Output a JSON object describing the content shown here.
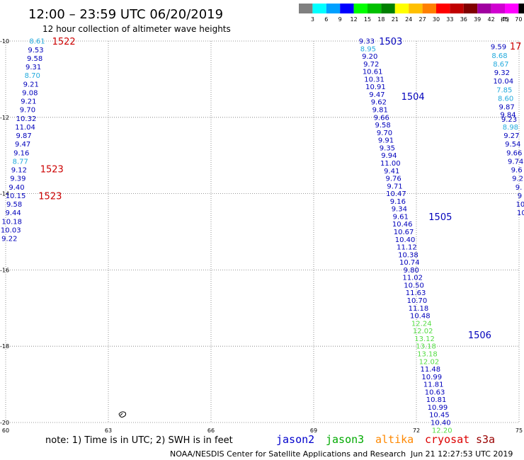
{
  "header": {
    "title": "12:00 – 23:59 UTC 06/20/2019",
    "subtitle": "12 hour collection of altimeter wave heights"
  },
  "legend": {
    "unit": "(ft)",
    "items": [
      {
        "label": "3",
        "color": "#808080"
      },
      {
        "label": "6",
        "color": "#00ffff"
      },
      {
        "label": "9",
        "color": "#00a0ff"
      },
      {
        "label": "12",
        "color": "#0000ff"
      },
      {
        "label": "15",
        "color": "#00ff00"
      },
      {
        "label": "18",
        "color": "#00c000"
      },
      {
        "label": "21",
        "color": "#008000"
      },
      {
        "label": "24",
        "color": "#ffff00"
      },
      {
        "label": "27",
        "color": "#ffc000"
      },
      {
        "label": "30",
        "color": "#ff8000"
      },
      {
        "label": "33",
        "color": "#ff0000"
      },
      {
        "label": "36",
        "color": "#c00000"
      },
      {
        "label": "39",
        "color": "#800000"
      },
      {
        "label": "42",
        "color": "#a000a0"
      },
      {
        "label": "45",
        "color": "#d000d0"
      },
      {
        "label": "70",
        "color": "#ff00ff"
      },
      {
        "label": "",
        "color": "#000000"
      }
    ]
  },
  "axes": {
    "lat_labels": [
      "-10",
      "-12",
      "-14",
      "-16",
      "-18",
      "-20"
    ],
    "lon_labels": [
      "60",
      "63",
      "66",
      "69",
      "72",
      "75"
    ]
  },
  "colors": {
    "cyan": "#22aadd",
    "blue": "#0000bb",
    "green": "#55dd44",
    "red": "#cc0000"
  },
  "tracks": {
    "t1522": [
      {
        "v": "8.61",
        "lon": 60.92,
        "lat": -10.0,
        "c": "cyan"
      },
      {
        "v": "9.53",
        "lon": 60.88,
        "lat": -10.23,
        "c": "blue"
      },
      {
        "v": "9.58",
        "lon": 60.85,
        "lat": -10.45,
        "c": "blue"
      },
      {
        "v": "9.31",
        "lon": 60.81,
        "lat": -10.68,
        "c": "blue"
      },
      {
        "v": "8.70",
        "lon": 60.78,
        "lat": -10.9,
        "c": "cyan"
      },
      {
        "v": "9.21",
        "lon": 60.74,
        "lat": -11.13,
        "c": "blue"
      },
      {
        "v": "9.08",
        "lon": 60.71,
        "lat": -11.35,
        "c": "blue"
      },
      {
        "v": "9.21",
        "lon": 60.67,
        "lat": -11.58,
        "c": "blue"
      },
      {
        "v": "9.70",
        "lon": 60.64,
        "lat": -11.8,
        "c": "blue"
      },
      {
        "v": "10.32",
        "lon": 60.6,
        "lat": -12.03,
        "c": "blue"
      },
      {
        "v": "11.04",
        "lon": 60.57,
        "lat": -12.25,
        "c": "blue"
      },
      {
        "v": "9.87",
        "lon": 60.53,
        "lat": -12.48,
        "c": "blue"
      },
      {
        "v": "9.47",
        "lon": 60.5,
        "lat": -12.7,
        "c": "blue"
      },
      {
        "v": "9.16",
        "lon": 60.46,
        "lat": -12.93,
        "c": "blue"
      },
      {
        "v": "8.77",
        "lon": 60.43,
        "lat": -13.15,
        "c": "cyan"
      },
      {
        "v": "9.12",
        "lon": 60.39,
        "lat": -13.38,
        "c": "blue"
      },
      {
        "v": "9.39",
        "lon": 60.36,
        "lat": -13.6,
        "c": "blue"
      },
      {
        "v": "9.40",
        "lon": 60.32,
        "lat": -13.83,
        "c": "blue"
      },
      {
        "v": "10.15",
        "lon": 60.29,
        "lat": -14.05,
        "c": "blue"
      },
      {
        "v": "9.58",
        "lon": 60.25,
        "lat": -14.28,
        "c": "blue"
      },
      {
        "v": "9.44",
        "lon": 60.22,
        "lat": -14.5,
        "c": "blue"
      },
      {
        "v": "10.18",
        "lon": 60.18,
        "lat": -14.73,
        "c": "blue"
      },
      {
        "v": "10.03",
        "lon": 60.15,
        "lat": -14.95,
        "c": "blue"
      },
      {
        "v": "9.22",
        "lon": 60.11,
        "lat": -15.18,
        "c": "blue"
      }
    ],
    "t1503": [
      {
        "v": "9.33",
        "lon": 70.55,
        "lat": -10.0,
        "c": "blue"
      },
      {
        "v": "8.95",
        "lon": 70.59,
        "lat": -10.2,
        "c": "cyan"
      },
      {
        "v": "9.20",
        "lon": 70.64,
        "lat": -10.4,
        "c": "blue"
      },
      {
        "v": "9.72",
        "lon": 70.68,
        "lat": -10.6,
        "c": "blue"
      },
      {
        "v": "10.61",
        "lon": 70.72,
        "lat": -10.8,
        "c": "blue"
      },
      {
        "v": "10.31",
        "lon": 70.77,
        "lat": -11.0,
        "c": "blue"
      },
      {
        "v": "10.91",
        "lon": 70.81,
        "lat": -11.2,
        "c": "blue"
      },
      {
        "v": "9.47",
        "lon": 70.85,
        "lat": -11.4,
        "c": "blue"
      },
      {
        "v": "9.62",
        "lon": 70.9,
        "lat": -11.6,
        "c": "blue"
      },
      {
        "v": "9.81",
        "lon": 70.94,
        "lat": -11.8,
        "c": "blue"
      },
      {
        "v": "9.66",
        "lon": 70.98,
        "lat": -12.0,
        "c": "blue"
      },
      {
        "v": "9.58",
        "lon": 71.02,
        "lat": -12.2,
        "c": "blue"
      },
      {
        "v": "9.70",
        "lon": 71.07,
        "lat": -12.4,
        "c": "blue"
      },
      {
        "v": "9.91",
        "lon": 71.11,
        "lat": -12.6,
        "c": "blue"
      },
      {
        "v": "9.35",
        "lon": 71.15,
        "lat": -12.8,
        "c": "blue"
      },
      {
        "v": "9.94",
        "lon": 71.2,
        "lat": -13.0,
        "c": "blue"
      },
      {
        "v": "11.00",
        "lon": 71.24,
        "lat": -13.2,
        "c": "blue"
      },
      {
        "v": "9.41",
        "lon": 71.28,
        "lat": -13.4,
        "c": "blue"
      },
      {
        "v": "9.76",
        "lon": 71.33,
        "lat": -13.6,
        "c": "blue"
      },
      {
        "v": "9.71",
        "lon": 71.37,
        "lat": -13.8,
        "c": "blue"
      },
      {
        "v": "10.47",
        "lon": 71.41,
        "lat": -14.0,
        "c": "blue"
      },
      {
        "v": "9.16",
        "lon": 71.46,
        "lat": -14.2,
        "c": "blue"
      },
      {
        "v": "9.34",
        "lon": 71.5,
        "lat": -14.4,
        "c": "blue"
      },
      {
        "v": "9.61",
        "lon": 71.54,
        "lat": -14.6,
        "c": "blue"
      },
      {
        "v": "10.46",
        "lon": 71.59,
        "lat": -14.8,
        "c": "blue"
      },
      {
        "v": "10.67",
        "lon": 71.63,
        "lat": -15.0,
        "c": "blue"
      },
      {
        "v": "10.40",
        "lon": 71.67,
        "lat": -15.2,
        "c": "blue"
      },
      {
        "v": "11.12",
        "lon": 71.72,
        "lat": -15.4,
        "c": "blue"
      },
      {
        "v": "10.38",
        "lon": 71.76,
        "lat": -15.6,
        "c": "blue"
      },
      {
        "v": "10.74",
        "lon": 71.8,
        "lat": -15.8,
        "c": "blue"
      },
      {
        "v": "9.80",
        "lon": 71.85,
        "lat": -16.0,
        "c": "blue"
      },
      {
        "v": "11.02",
        "lon": 71.89,
        "lat": -16.2,
        "c": "blue"
      },
      {
        "v": "10.50",
        "lon": 71.93,
        "lat": -16.4,
        "c": "blue"
      },
      {
        "v": "11.63",
        "lon": 71.98,
        "lat": -16.6,
        "c": "blue"
      },
      {
        "v": "10.70",
        "lon": 72.02,
        "lat": -16.8,
        "c": "blue"
      },
      {
        "v": "11.18",
        "lon": 72.06,
        "lat": -17.0,
        "c": "blue"
      },
      {
        "v": "10.48",
        "lon": 72.11,
        "lat": -17.2,
        "c": "blue"
      },
      {
        "v": "12.24",
        "lon": 72.15,
        "lat": -17.4,
        "c": "green"
      },
      {
        "v": "12.02",
        "lon": 72.19,
        "lat": -17.6,
        "c": "green"
      },
      {
        "v": "13.12",
        "lon": 72.24,
        "lat": -17.8,
        "c": "green"
      },
      {
        "v": "13.18",
        "lon": 72.28,
        "lat": -18.0,
        "c": "green"
      },
      {
        "v": "13.18",
        "lon": 72.32,
        "lat": -18.2,
        "c": "green"
      },
      {
        "v": "12.02",
        "lon": 72.37,
        "lat": -18.4,
        "c": "green"
      },
      {
        "v": "11.48",
        "lon": 72.41,
        "lat": -18.6,
        "c": "blue"
      },
      {
        "v": "10.99",
        "lon": 72.45,
        "lat": -18.8,
        "c": "blue"
      },
      {
        "v": "11.81",
        "lon": 72.5,
        "lat": -19.0,
        "c": "blue"
      },
      {
        "v": "10.63",
        "lon": 72.54,
        "lat": -19.2,
        "c": "blue"
      },
      {
        "v": "10.81",
        "lon": 72.58,
        "lat": -19.4,
        "c": "blue"
      },
      {
        "v": "10.99",
        "lon": 72.62,
        "lat": -19.6,
        "c": "blue"
      },
      {
        "v": "10.45",
        "lon": 72.67,
        "lat": -19.8,
        "c": "blue"
      },
      {
        "v": "10.40",
        "lon": 72.71,
        "lat": -20.0,
        "c": "blue"
      },
      {
        "v": "12.20",
        "lon": 72.75,
        "lat": -20.2,
        "c": "green"
      }
    ],
    "tright": [
      {
        "v": "9.59",
        "lon": 74.4,
        "lat": -10.15,
        "c": "blue"
      },
      {
        "v": "8.68",
        "lon": 74.43,
        "lat": -10.38,
        "c": "cyan"
      },
      {
        "v": "8.67",
        "lon": 74.47,
        "lat": -10.6,
        "c": "cyan"
      },
      {
        "v": "9.32",
        "lon": 74.5,
        "lat": -10.83,
        "c": "blue"
      },
      {
        "v": "10.04",
        "lon": 74.54,
        "lat": -11.05,
        "c": "blue"
      },
      {
        "v": "7.85",
        "lon": 74.57,
        "lat": -11.28,
        "c": "cyan"
      },
      {
        "v": "8.60",
        "lon": 74.61,
        "lat": -11.5,
        "c": "cyan"
      },
      {
        "v": "9.87",
        "lon": 74.64,
        "lat": -11.73,
        "c": "blue"
      },
      {
        "v": "9.84",
        "lon": 74.68,
        "lat": -11.93,
        "c": "blue"
      },
      {
        "v": "9.23",
        "lon": 74.71,
        "lat": -12.05,
        "c": "blue"
      },
      {
        "v": "8.98",
        "lon": 74.75,
        "lat": -12.25,
        "c": "cyan"
      },
      {
        "v": "9.27",
        "lon": 74.78,
        "lat": -12.48,
        "c": "blue"
      },
      {
        "v": "9.54",
        "lon": 74.82,
        "lat": -12.7,
        "c": "blue"
      },
      {
        "v": "9.66",
        "lon": 74.86,
        "lat": -12.93,
        "c": "blue"
      },
      {
        "v": "9.74",
        "lon": 74.9,
        "lat": -13.15,
        "c": "blue"
      },
      {
        "v": "9.6",
        "lon": 74.93,
        "lat": -13.38,
        "c": "blue"
      },
      {
        "v": "9.2",
        "lon": 74.96,
        "lat": -13.6,
        "c": "blue"
      },
      {
        "v": "9.",
        "lon": 74.99,
        "lat": -13.83,
        "c": "blue"
      },
      {
        "v": "9",
        "lon": 75.02,
        "lat": -14.05,
        "c": "blue"
      },
      {
        "v": "10",
        "lon": 75.04,
        "lat": -14.28,
        "c": "blue"
      },
      {
        "v": "10",
        "lon": 75.07,
        "lat": -14.5,
        "c": "blue"
      }
    ]
  },
  "pass_labels": [
    {
      "text": "1522",
      "lon": 61.7,
      "lat": -10.0,
      "c": "red"
    },
    {
      "text": "1523",
      "lon": 61.35,
      "lat": -13.35,
      "c": "red"
    },
    {
      "text": "1523",
      "lon": 61.3,
      "lat": -14.05,
      "c": "red"
    },
    {
      "text": "1503",
      "lon": 71.25,
      "lat": -10.0,
      "c": "blue"
    },
    {
      "text": "1504",
      "lon": 71.9,
      "lat": -11.45,
      "c": "blue"
    },
    {
      "text": "1505",
      "lon": 72.7,
      "lat": -14.6,
      "c": "blue"
    },
    {
      "text": "1506",
      "lon": 73.85,
      "lat": -17.7,
      "c": "blue"
    },
    {
      "text": "17",
      "lon": 74.9,
      "lat": -10.13,
      "c": "red"
    }
  ],
  "footer": {
    "note": "note:  1) Time is in UTC;  2) SWH is in feet",
    "satellites": [
      {
        "name": "jason2",
        "color": "#0000cc"
      },
      {
        "name": "jason3",
        "color": "#00aa00"
      },
      {
        "name": "altika",
        "color": "#ff8800"
      },
      {
        "name": "cryosat",
        "color": "#dd0000"
      },
      {
        "name": "s3a",
        "color": "#990000"
      }
    ],
    "credit": "NOAA/NESDIS Center for Satellite Applications and Research",
    "timestamp": "Jun 21 12:27:53 UTC 2019"
  }
}
